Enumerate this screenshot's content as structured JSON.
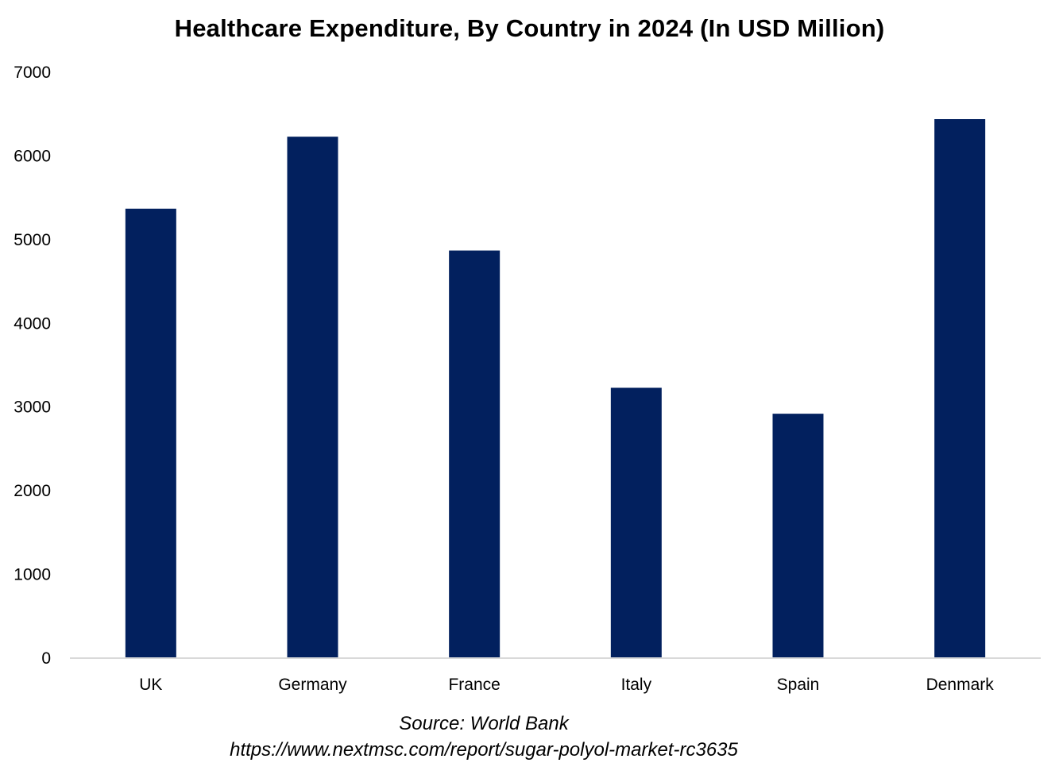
{
  "chart_data": {
    "type": "bar",
    "title": "Healthcare Expenditure, By Country in 2024 (In USD Million)",
    "categories": [
      "UK",
      "Germany",
      "France",
      "Italy",
      "Spain",
      "Denmark"
    ],
    "values": [
      5370,
      6230,
      4870,
      3230,
      2920,
      6440
    ],
    "xlabel": "",
    "ylabel": "",
    "ylim": [
      0,
      7000
    ],
    "yticks": [
      0,
      1000,
      2000,
      3000,
      4000,
      5000,
      6000,
      7000
    ],
    "grid": false,
    "legend": "none",
    "bar_color": "#02205E",
    "axis_color": "#D9D9D9"
  },
  "footer": {
    "source": "Source: World Bank",
    "url": "https://www.nextmsc.com/report/sugar-polyol-market-rc3635"
  }
}
